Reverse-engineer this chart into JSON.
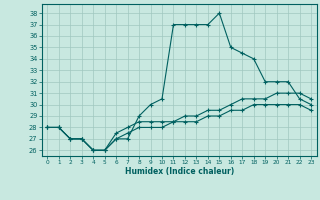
{
  "title": "",
  "xlabel": "Humidex (Indice chaleur)",
  "ylabel": "",
  "bg_color": "#c8e8e0",
  "grid_color": "#a0c8c0",
  "line_color": "#006060",
  "xlim": [
    -0.5,
    23.5
  ],
  "ylim": [
    25.5,
    38.8
  ],
  "yticks": [
    26,
    27,
    28,
    29,
    30,
    31,
    32,
    33,
    34,
    35,
    36,
    37,
    38
  ],
  "xticks": [
    0,
    1,
    2,
    3,
    4,
    5,
    6,
    7,
    8,
    9,
    10,
    11,
    12,
    13,
    14,
    15,
    16,
    17,
    18,
    19,
    20,
    21,
    22,
    23
  ],
  "series": [
    {
      "x": [
        0,
        1,
        2,
        3,
        4,
        5,
        6,
        7,
        8,
        9,
        10,
        11,
        12,
        13,
        14,
        15,
        16,
        17,
        18,
        19,
        20,
        21,
        22,
        23
      ],
      "y": [
        28,
        28,
        27,
        27,
        26,
        26,
        27,
        27,
        29,
        30,
        30.5,
        37,
        37,
        37,
        37,
        38,
        35,
        34.5,
        34,
        32,
        32,
        32,
        30.5,
        30
      ]
    },
    {
      "x": [
        0,
        1,
        2,
        3,
        4,
        5,
        6,
        7,
        8,
        9,
        10,
        11,
        12,
        13,
        14,
        15,
        16,
        17,
        18,
        19,
        20,
        21,
        22,
        23
      ],
      "y": [
        28,
        28,
        27,
        27,
        26,
        26,
        27.5,
        28,
        28.5,
        28.5,
        28.5,
        28.5,
        29,
        29,
        29.5,
        29.5,
        30,
        30.5,
        30.5,
        30.5,
        31,
        31,
        31,
        30.5
      ]
    },
    {
      "x": [
        0,
        1,
        2,
        3,
        4,
        5,
        6,
        7,
        8,
        9,
        10,
        11,
        12,
        13,
        14,
        15,
        16,
        17,
        18,
        19,
        20,
        21,
        22,
        23
      ],
      "y": [
        28,
        28,
        27,
        27,
        26,
        26,
        27,
        27.5,
        28,
        28,
        28,
        28.5,
        28.5,
        28.5,
        29,
        29,
        29.5,
        29.5,
        30,
        30,
        30,
        30,
        30,
        29.5
      ]
    }
  ]
}
